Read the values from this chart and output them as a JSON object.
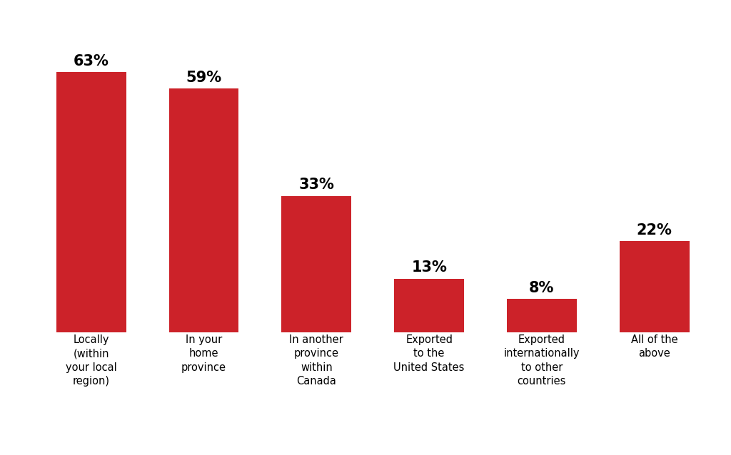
{
  "categories": [
    "Locally\n(within\nyour local\nregion)",
    "In your\nhome\nprovince",
    "In another\nprovince\nwithin\nCanada",
    "Exported\nto the\nUnited States",
    "Exported\ninternationally\nto other\ncountries",
    "All of the\nabove"
  ],
  "values": [
    63,
    59,
    33,
    13,
    8,
    22
  ],
  "labels": [
    "63%",
    "59%",
    "33%",
    "13%",
    "8%",
    "22%"
  ],
  "bar_color": "#cc2229",
  "background_color": "#ffffff",
  "map_color": "#d0d0d0",
  "map_edge_color": "#ffffff",
  "label_fontsize": 15,
  "tick_fontsize": 10.5,
  "bar_width": 0.62,
  "ylim": [
    0,
    75
  ],
  "map_xlim": [
    -165,
    175
  ],
  "map_ylim": [
    -58,
    83
  ],
  "fig_width": 10.24,
  "fig_height": 6.38,
  "dpi": 100
}
